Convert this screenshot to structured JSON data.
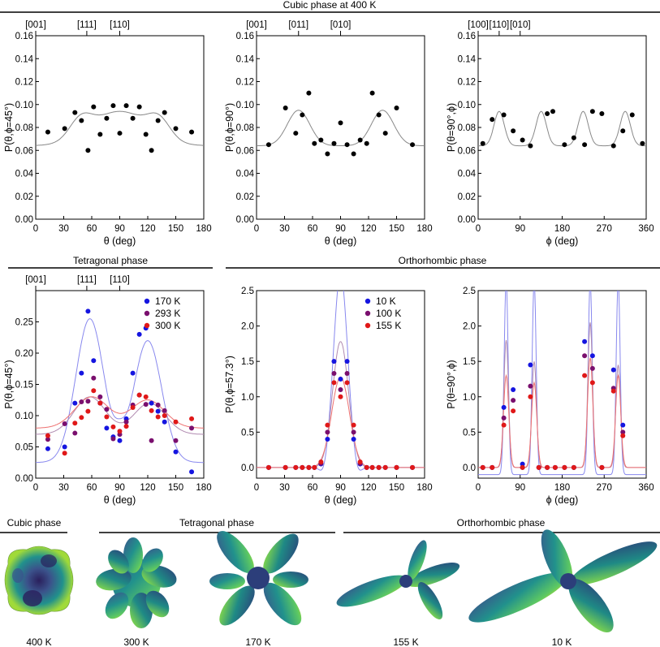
{
  "colors": {
    "fit_gray": "#888888",
    "blue": "#1515e0",
    "purple": "#7a0f6e",
    "red": "#e01818",
    "line_blue": "#8888ee",
    "line_purple": "#b08ab0",
    "line_red": "#ee7070"
  },
  "section_titles": {
    "cubic": "Cubic phase at 400 K",
    "tetragonal": "Tetragonal phase",
    "orthorhombic": "Orthorhombic phase"
  },
  "chart_data": [
    {
      "type": "scatter",
      "id": "p1",
      "ylabel": "P(θ,ϕ=45°)",
      "xlabel": "θ (deg)",
      "xlim": [
        0,
        180
      ],
      "ylim": [
        0,
        0.16
      ],
      "xticks": [
        0,
        30,
        60,
        90,
        120,
        150,
        180
      ],
      "yticks": [
        0,
        0.02,
        0.04,
        0.06,
        0.08,
        0.1,
        0.12,
        0.14,
        0.16
      ],
      "ytick_labels": [
        "0.00",
        "0.02",
        "0.04",
        "0.06",
        "0.08",
        "0.10",
        "0.12",
        "0.14",
        "0.16"
      ],
      "top_labels": [
        {
          "x": 0,
          "text": "[001]"
        },
        {
          "x": 54.7,
          "text": "[111]"
        },
        {
          "x": 90,
          "text": "[110]"
        }
      ],
      "series": [
        {
          "name": "400 K",
          "color": "#000000",
          "x": [
            13,
            31,
            42,
            49,
            56,
            62,
            69,
            76,
            83,
            90,
            97,
            104,
            111,
            118,
            124,
            131,
            138,
            150,
            167
          ],
          "y": [
            0.076,
            0.079,
            0.093,
            0.086,
            0.06,
            0.098,
            0.074,
            0.088,
            0.099,
            0.075,
            0.099,
            0.088,
            0.098,
            0.074,
            0.06,
            0.086,
            0.093,
            0.079,
            0.076
          ]
        }
      ],
      "fit_desc": "cubic harmonic fit"
    },
    {
      "type": "scatter",
      "id": "p2",
      "ylabel": "P(θ,ϕ=90°)",
      "xlabel": "θ (deg)",
      "xlim": [
        0,
        180
      ],
      "ylim": [
        0,
        0.16
      ],
      "xticks": [
        0,
        30,
        60,
        90,
        120,
        150,
        180
      ],
      "yticks": [
        0,
        0.02,
        0.04,
        0.06,
        0.08,
        0.1,
        0.12,
        0.14,
        0.16
      ],
      "ytick_labels": [
        "0.00",
        "0.02",
        "0.04",
        "0.06",
        "0.08",
        "0.10",
        "0.12",
        "0.14",
        "0.16"
      ],
      "top_labels": [
        {
          "x": 0,
          "text": "[001]"
        },
        {
          "x": 45,
          "text": "[011]"
        },
        {
          "x": 90,
          "text": "[010]"
        }
      ],
      "series": [
        {
          "name": "400 K",
          "color": "#000000",
          "x": [
            13,
            31,
            42,
            49,
            56,
            62,
            69,
            76,
            83,
            90,
            97,
            104,
            111,
            118,
            124,
            131,
            138,
            150,
            167
          ],
          "y": [
            0.065,
            0.097,
            0.075,
            0.091,
            0.11,
            0.066,
            0.069,
            0.057,
            0.066,
            0.084,
            0.065,
            0.057,
            0.069,
            0.066,
            0.11,
            0.091,
            0.075,
            0.097,
            0.065
          ]
        }
      ],
      "fit_desc": "cubic harmonic fit"
    },
    {
      "type": "scatter",
      "id": "p3",
      "ylabel": "P(θ=90°,ϕ)",
      "xlabel": "ϕ (deg)",
      "xlim": [
        0,
        360
      ],
      "ylim": [
        0,
        0.16
      ],
      "xticks": [
        0,
        90,
        180,
        270,
        360
      ],
      "yticks": [
        0,
        0.02,
        0.04,
        0.06,
        0.08,
        0.1,
        0.12,
        0.14,
        0.16
      ],
      "ytick_labels": [
        "0.00",
        "0.02",
        "0.04",
        "0.06",
        "0.08",
        "0.10",
        "0.12",
        "0.14",
        "0.16"
      ],
      "top_labels": [
        {
          "x": 0,
          "text": "[100]"
        },
        {
          "x": 45,
          "text": "[110]"
        },
        {
          "x": 90,
          "text": "[010]"
        }
      ],
      "series": [
        {
          "name": "400 K",
          "color": "#000000",
          "x": [
            10,
            30,
            55,
            75,
            95,
            112,
            148,
            160,
            185,
            205,
            228,
            245,
            265,
            290,
            310,
            330,
            352
          ],
          "y": [
            0.066,
            0.087,
            0.091,
            0.077,
            0.069,
            0.064,
            0.092,
            0.094,
            0.065,
            0.071,
            0.065,
            0.094,
            0.092,
            0.064,
            0.077,
            0.091,
            0.066
          ]
        }
      ],
      "fit_desc": "cubic harmonic fit"
    },
    {
      "type": "scatter",
      "id": "p4",
      "ylabel": "P(θ,ϕ=45°)",
      "xlabel": "θ (deg)",
      "xlim": [
        0,
        180
      ],
      "ylim": [
        0,
        0.3
      ],
      "xticks": [
        0,
        30,
        60,
        90,
        120,
        150,
        180
      ],
      "yticks": [
        0,
        0.05,
        0.1,
        0.15,
        0.2,
        0.25
      ],
      "ytick_labels": [
        "0.00",
        "0.05",
        "0.10",
        "0.15",
        "0.20",
        "0.25"
      ],
      "top_labels": [
        {
          "x": 0,
          "text": "[001]"
        },
        {
          "x": 54.7,
          "text": "[111]"
        },
        {
          "x": 90,
          "text": "[110]"
        }
      ],
      "legend": "top-right",
      "series": [
        {
          "name": "170 K",
          "color": "#1515e0",
          "x": [
            13,
            31,
            42,
            49,
            56,
            62,
            69,
            76,
            83,
            90,
            97,
            104,
            111,
            118,
            124,
            131,
            138,
            150,
            167
          ],
          "y": [
            0.047,
            0.05,
            0.12,
            0.168,
            0.267,
            0.188,
            0.12,
            0.08,
            0.066,
            0.06,
            0.095,
            0.168,
            0.23,
            0.24,
            0.12,
            0.107,
            0.09,
            0.042,
            0.01
          ]
        },
        {
          "name": "293 K",
          "color": "#7a0f6e",
          "x": [
            13,
            31,
            42,
            49,
            56,
            62,
            69,
            76,
            83,
            90,
            97,
            104,
            111,
            118,
            124,
            131,
            138,
            150,
            167
          ],
          "y": [
            0.062,
            0.087,
            0.072,
            0.122,
            0.123,
            0.16,
            0.13,
            0.11,
            0.063,
            0.07,
            0.09,
            0.117,
            0.133,
            0.118,
            0.06,
            0.117,
            0.108,
            0.06,
            0.08
          ]
        },
        {
          "name": "300 K",
          "color": "#e01818",
          "x": [
            13,
            31,
            42,
            49,
            56,
            62,
            69,
            76,
            83,
            90,
            97,
            104,
            111,
            118,
            124,
            131,
            138,
            150,
            167
          ],
          "y": [
            0.068,
            0.04,
            0.088,
            0.097,
            0.107,
            0.14,
            0.12,
            0.098,
            0.082,
            0.075,
            0.083,
            0.113,
            0.133,
            0.13,
            0.108,
            0.098,
            0.1,
            0.09,
            0.095
          ]
        }
      ]
    },
    {
      "type": "scatter",
      "id": "p5",
      "ylabel": "P(θ,ϕ=57.3°)",
      "xlabel": "θ (deg)",
      "xlim": [
        0,
        180
      ],
      "ylim": [
        -0.15,
        2.5
      ],
      "xticks": [
        0,
        30,
        60,
        90,
        120,
        150,
        180
      ],
      "yticks": [
        0,
        0.5,
        1.0,
        1.5,
        2.0,
        2.5
      ],
      "ytick_labels": [
        "0.0",
        "0.5",
        "1.0",
        "1.5",
        "2.0",
        "2.5"
      ],
      "legend": "top-right",
      "series": [
        {
          "name": "10 K",
          "color": "#1515e0",
          "x": [
            13,
            31,
            42,
            49,
            56,
            62,
            69,
            76,
            83,
            90,
            97,
            104,
            111,
            118,
            124,
            131,
            138,
            150,
            167
          ],
          "y": [
            0.0,
            0.0,
            0.0,
            0.0,
            0.0,
            0.0,
            0.05,
            0.4,
            1.5,
            1.25,
            1.5,
            0.4,
            0.05,
            0.0,
            0.0,
            0.0,
            0.0,
            0.0,
            0.0
          ]
        },
        {
          "name": "100 K",
          "color": "#7a0f6e",
          "x": [
            13,
            31,
            42,
            49,
            56,
            62,
            69,
            76,
            83,
            90,
            97,
            104,
            111,
            118,
            124,
            131,
            138,
            150,
            167
          ],
          "y": [
            0.0,
            0.0,
            0.0,
            0.0,
            0.0,
            0.0,
            0.06,
            0.5,
            1.33,
            1.1,
            1.33,
            0.5,
            0.06,
            0.0,
            0.0,
            0.0,
            0.0,
            0.0,
            0.0
          ]
        },
        {
          "name": "155 K",
          "color": "#e01818",
          "x": [
            13,
            31,
            42,
            49,
            56,
            62,
            69,
            76,
            83,
            90,
            97,
            104,
            111,
            118,
            124,
            131,
            138,
            150,
            167
          ],
          "y": [
            0.0,
            0.0,
            0.0,
            0.0,
            0.0,
            0.0,
            0.08,
            0.6,
            1.2,
            1.0,
            1.2,
            0.6,
            0.08,
            0.0,
            0.0,
            0.0,
            0.0,
            0.0,
            0.0
          ]
        }
      ]
    },
    {
      "type": "scatter",
      "id": "p6",
      "ylabel": "P(θ=90°,ϕ)",
      "xlabel": "ϕ (deg)",
      "xlim": [
        0,
        360
      ],
      "ylim": [
        -0.15,
        2.5
      ],
      "xticks": [
        0,
        90,
        180,
        270,
        360
      ],
      "yticks": [
        0,
        0.5,
        1.0,
        1.5,
        2.0,
        2.5
      ],
      "ytick_labels": [
        "0.0",
        "0.5",
        "1.0",
        "1.5",
        "2.0",
        "2.5"
      ],
      "series": [
        {
          "name": "10 K",
          "color": "#1515e0",
          "x": [
            10,
            30,
            55,
            75,
            95,
            112,
            130,
            148,
            165,
            185,
            205,
            228,
            245,
            265,
            290,
            310
          ],
          "y": [
            0.0,
            0.0,
            0.85,
            1.1,
            0.05,
            1.45,
            0.0,
            0.0,
            0.0,
            0.0,
            0.0,
            1.78,
            1.58,
            0.0,
            1.38,
            0.6
          ]
        },
        {
          "name": "100 K",
          "color": "#7a0f6e",
          "x": [
            10,
            30,
            55,
            75,
            95,
            112,
            130,
            148,
            165,
            185,
            205,
            228,
            245,
            265,
            290,
            310
          ],
          "y": [
            0.0,
            0.0,
            0.7,
            0.95,
            0.0,
            1.15,
            0.0,
            0.0,
            0.0,
            0.0,
            0.0,
            1.58,
            1.4,
            0.0,
            1.12,
            0.5
          ]
        },
        {
          "name": "155 K",
          "color": "#e01818",
          "x": [
            10,
            30,
            55,
            75,
            95,
            112,
            130,
            148,
            165,
            185,
            205,
            228,
            245,
            265,
            290,
            310
          ],
          "y": [
            0.0,
            0.0,
            0.6,
            0.8,
            0.0,
            1.0,
            0.0,
            0.0,
            0.0,
            0.0,
            0.0,
            1.3,
            1.2,
            0.0,
            1.08,
            0.45
          ]
        }
      ]
    }
  ],
  "bottom": {
    "groups": [
      {
        "label": "Cubic phase"
      },
      {
        "label": "Tetragonal phase"
      },
      {
        "label": "Orthorhombic phase"
      }
    ],
    "temps": [
      "400 K",
      "300 K",
      "170 K",
      "155 K",
      "10 K"
    ]
  }
}
